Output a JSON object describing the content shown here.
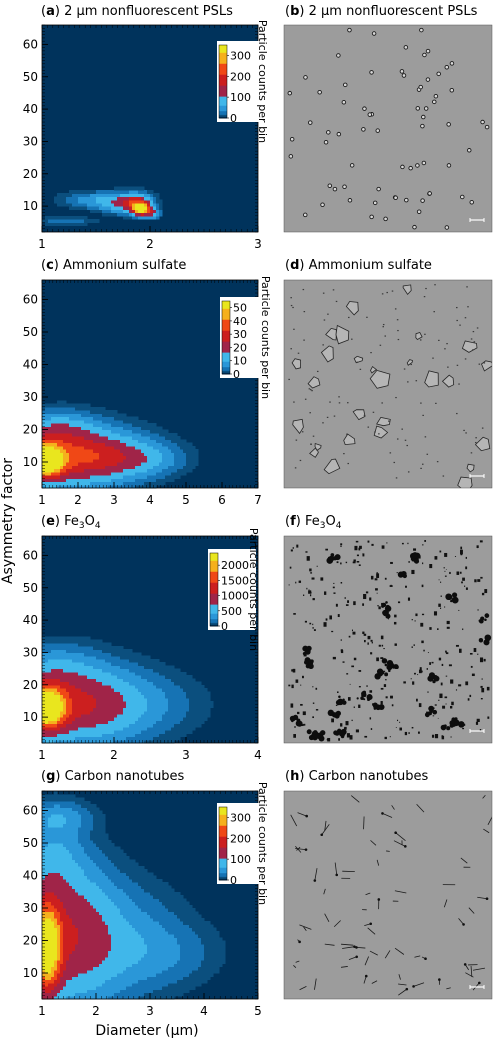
{
  "figure": {
    "ylabel": "Asymmetry factor",
    "xlabel": "Diameter (μm)"
  },
  "colors": {
    "background": "#00335c",
    "scale": [
      "#00335c",
      "#0b4f7e",
      "#1673b4",
      "#2a97d8",
      "#40b7ea",
      "#a02448",
      "#cc1f1f",
      "#f04816",
      "#f5b01d",
      "#e9e61e"
    ],
    "micrograph_bg": "#9c9c9c"
  },
  "chart_data": [
    {
      "type": "heatmap",
      "panel": "a",
      "label_letter": "a",
      "title_text": "2 μm nonfluorescent PSLs",
      "xlim": [
        1,
        3
      ],
      "xticks": [
        1,
        2,
        3
      ],
      "ylim": [
        2,
        66
      ],
      "yticks": [
        10,
        20,
        30,
        40,
        50,
        60
      ],
      "colorbar": {
        "label": "Particle counts per bin",
        "max": 350,
        "ticks": [
          0,
          100,
          200,
          300
        ]
      },
      "blobs": [
        {
          "x": 1.55,
          "y": 12.0,
          "sx": 0.22,
          "sy": 1.6,
          "peak": 0.16
        },
        {
          "x": 1.75,
          "y": 10.8,
          "sx": 0.13,
          "sy": 1.8,
          "peak": 0.26
        },
        {
          "x": 1.92,
          "y": 9.2,
          "sx": 0.05,
          "sy": 1.2,
          "peak": 1.0
        },
        {
          "x": 1.88,
          "y": 11.0,
          "sx": 0.08,
          "sy": 1.8,
          "peak": 0.45
        },
        {
          "x": 1.22,
          "y": 5.5,
          "sx": 0.18,
          "sy": 0.8,
          "peak": 0.08
        },
        {
          "x": 2.02,
          "y": 8.0,
          "sx": 0.04,
          "sy": 1.0,
          "peak": 0.35
        }
      ]
    },
    {
      "type": "heatmap",
      "panel": "c",
      "label_letter": "c",
      "title_text": "Ammonium sulfate",
      "xlim": [
        1,
        7
      ],
      "xticks": [
        1,
        2,
        3,
        4,
        5,
        6,
        7
      ],
      "ylim": [
        2,
        66
      ],
      "yticks": [
        10,
        20,
        30,
        40,
        50,
        60
      ],
      "colorbar": {
        "label": "Particle counts per bin",
        "max": 55,
        "ticks": [
          0,
          10,
          20,
          30,
          40,
          50
        ]
      },
      "blobs": [
        {
          "x": 1.1,
          "y": 10.5,
          "sx": 0.35,
          "sy": 3.5,
          "peak": 1.0
        },
        {
          "x": 1.8,
          "y": 12.0,
          "sx": 1.0,
          "sy": 6.0,
          "peak": 0.45
        },
        {
          "x": 2.8,
          "y": 12.0,
          "sx": 1.0,
          "sy": 4.5,
          "peak": 0.25
        },
        {
          "x": 3.8,
          "y": 11.0,
          "sx": 0.7,
          "sy": 3.0,
          "peak": 0.12
        },
        {
          "x": 1.4,
          "y": 20.0,
          "sx": 0.6,
          "sy": 3.5,
          "peak": 0.2
        }
      ]
    },
    {
      "type": "heatmap",
      "panel": "e",
      "label_letter": "e",
      "title_text": "Fe3O4",
      "xlim": [
        1,
        4
      ],
      "xticks": [
        1,
        2,
        3,
        4
      ],
      "ylim": [
        2,
        66
      ],
      "yticks": [
        10,
        20,
        30,
        40,
        50,
        60
      ],
      "colorbar": {
        "label": "Particle counts per bin",
        "max": 2400,
        "ticks": [
          0,
          500,
          1000,
          1500,
          2000
        ]
      },
      "blobs": [
        {
          "x": 1.05,
          "y": 13.0,
          "sx": 0.18,
          "sy": 4.5,
          "peak": 1.0
        },
        {
          "x": 1.4,
          "y": 14.0,
          "sx": 0.6,
          "sy": 7.5,
          "peak": 0.4
        },
        {
          "x": 2.0,
          "y": 14.0,
          "sx": 0.7,
          "sy": 6.5,
          "peak": 0.12
        },
        {
          "x": 1.2,
          "y": 25.0,
          "sx": 0.4,
          "sy": 5.0,
          "peak": 0.12
        }
      ]
    },
    {
      "type": "heatmap",
      "panel": "g",
      "label_letter": "g",
      "title_text": "Carbon nanotubes",
      "xlim": [
        1,
        5
      ],
      "xticks": [
        1,
        2,
        3,
        4,
        5
      ],
      "ylim": [
        2,
        66
      ],
      "yticks": [
        10,
        20,
        30,
        40,
        50,
        60
      ],
      "colorbar": {
        "label": "Particle counts per bin",
        "max": 350,
        "ticks": [
          0,
          100,
          200,
          300
        ]
      },
      "blobs": [
        {
          "x": 1.08,
          "y": 18.0,
          "sx": 0.18,
          "sy": 9.0,
          "peak": 1.0
        },
        {
          "x": 1.5,
          "y": 22.0,
          "sx": 0.55,
          "sy": 14.0,
          "peak": 0.35
        },
        {
          "x": 2.3,
          "y": 20.0,
          "sx": 0.8,
          "sy": 11.0,
          "peak": 0.15
        },
        {
          "x": 1.2,
          "y": 45.0,
          "sx": 0.35,
          "sy": 9.0,
          "peak": 0.16
        },
        {
          "x": 1.3,
          "y": 58.0,
          "sx": 0.4,
          "sy": 3.0,
          "peak": 0.13
        },
        {
          "x": 3.2,
          "y": 16.0,
          "sx": 0.7,
          "sy": 6.0,
          "peak": 0.07
        }
      ]
    }
  ],
  "micrographs": [
    {
      "panel": "b",
      "label_letter": "b",
      "title_text": "2 μm nonfluorescent PSLs",
      "style": "circles"
    },
    {
      "panel": "d",
      "label_letter": "d",
      "title_text": "Ammonium sulfate",
      "style": "crystals"
    },
    {
      "panel": "f",
      "label_letter": "f",
      "title_text": "Fe3O4",
      "style": "dark-aggregates"
    },
    {
      "panel": "h",
      "label_letter": "h",
      "title_text": "Carbon nanotubes",
      "style": "fibers"
    }
  ]
}
